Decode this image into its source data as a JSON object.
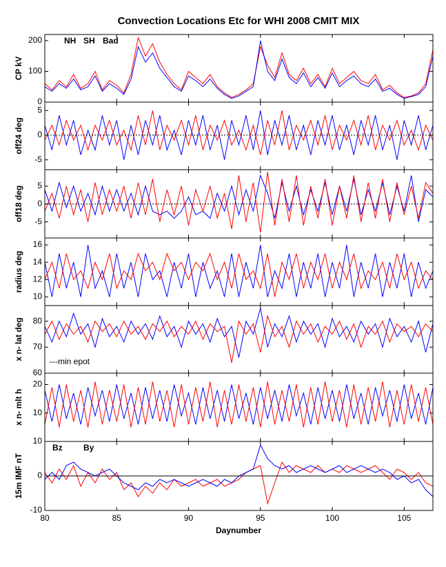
{
  "chart_data": {
    "type": "line",
    "title": "Convection Locations Etc for WHI 2008 CMIT MIX",
    "xlabel": "Daynumber",
    "xlim": [
      80,
      107
    ],
    "xticks": [
      80,
      85,
      90,
      95,
      100,
      105
    ],
    "x": [
      80,
      80.5,
      81,
      81.5,
      82,
      82.5,
      83,
      83.5,
      84,
      84.5,
      85,
      85.5,
      86,
      86.5,
      87,
      87.5,
      88,
      88.5,
      89,
      89.5,
      90,
      90.5,
      91,
      91.5,
      92,
      92.5,
      93,
      93.5,
      94,
      94.5,
      95,
      95.5,
      96,
      96.5,
      97,
      97.5,
      98,
      98.5,
      99,
      99.5,
      100,
      100.5,
      101,
      101.5,
      102,
      102.5,
      103,
      103.5,
      104,
      104.5,
      105,
      105.5,
      106,
      106.5,
      107
    ],
    "panels": [
      {
        "ylabel": "CP kV",
        "ylim": [
          0,
          220
        ],
        "yticks": [
          0,
          100,
          200
        ],
        "series": [
          {
            "name": "NH",
            "color": "#ff0000",
            "values": [
              60,
              40,
              70,
              50,
              90,
              45,
              60,
              100,
              40,
              70,
              55,
              30,
              90,
              210,
              150,
              190,
              130,
              90,
              60,
              40,
              100,
              80,
              60,
              90,
              50,
              30,
              15,
              25,
              40,
              60,
              180,
              120,
              80,
              160,
              90,
              70,
              110,
              60,
              90,
              50,
              110,
              60,
              80,
              100,
              70,
              60,
              90,
              40,
              55,
              30,
              15,
              20,
              30,
              60,
              170
            ]
          },
          {
            "name": "SH",
            "color": "#0000ff",
            "values": [
              50,
              35,
              60,
              45,
              75,
              40,
              50,
              85,
              35,
              60,
              45,
              25,
              75,
              180,
              130,
              160,
              110,
              80,
              50,
              35,
              85,
              70,
              50,
              75,
              45,
              25,
              12,
              20,
              35,
              50,
              200,
              100,
              70,
              140,
              80,
              60,
              95,
              50,
              80,
              45,
              95,
              50,
              70,
              85,
              60,
              50,
              75,
              35,
              45,
              25,
              12,
              18,
              25,
              50,
              150
            ]
          },
          {
            "name": "Bad",
            "color": "#000000",
            "values": [
              null,
              null,
              null,
              null,
              null,
              null,
              null,
              null,
              null,
              null,
              null,
              null,
              null,
              null,
              null,
              null,
              null,
              null,
              null,
              null,
              null,
              null,
              null,
              null,
              null,
              null,
              null,
              null,
              null,
              null,
              null,
              null,
              null,
              null,
              null,
              null,
              null,
              null,
              null,
              null,
              null,
              null,
              null,
              null,
              null,
              null,
              null,
              null,
              null,
              null,
              null,
              null,
              null,
              null,
              null
            ]
          }
        ]
      },
      {
        "ylabel": "off24 deg",
        "ylim": [
          -7,
          6.7
        ],
        "yticks": [
          -5,
          0,
          5
        ],
        "zero_line": true,
        "series": [
          {
            "name": "SH",
            "color": "#0000ff",
            "values": [
              2,
              -3,
              4,
              -2,
              3,
              -4,
              1,
              -3,
              4,
              -2,
              3,
              -5,
              2,
              -4,
              3,
              -2,
              4,
              -3,
              1,
              -4,
              3,
              -2,
              4,
              -3,
              2,
              -5,
              3,
              -2,
              4,
              -3,
              5,
              -4,
              3,
              -2,
              4,
              -3,
              2,
              -4,
              3,
              -2,
              4,
              -3,
              2,
              -4,
              3,
              -2,
              4,
              -3,
              2,
              -5,
              3,
              -2,
              4,
              -3,
              2
            ]
          },
          {
            "name": "NH",
            "color": "#ff0000",
            "values": [
              -1,
              2,
              -2,
              3,
              -1,
              2,
              -3,
              2,
              -1,
              3,
              -2,
              1,
              -3,
              4,
              -2,
              5,
              -3,
              2,
              -1,
              3,
              -2,
              4,
              -3,
              2,
              -1,
              3,
              -2,
              1,
              -3,
              2,
              -4,
              3,
              -2,
              5,
              -3,
              2,
              -1,
              3,
              -2,
              4,
              -3,
              2,
              -1,
              3,
              -2,
              4,
              -3,
              2,
              -1,
              3,
              -2,
              1,
              -3,
              2,
              -1
            ]
          }
        ]
      },
      {
        "ylabel": "off18 deg",
        "ylim": [
          -9.5,
          9.6
        ],
        "yticks": [
          -5,
          0,
          5
        ],
        "zero_line": true,
        "series": [
          {
            "name": "SH",
            "color": "#0000ff",
            "values": [
              4,
              -2,
              6,
              -1,
              5,
              -2,
              3,
              -3,
              5,
              -2,
              4,
              -2,
              3,
              -3,
              5,
              -2,
              -3,
              -2,
              -4,
              -2,
              2,
              -3,
              -2,
              -4,
              3,
              -2,
              5,
              -3,
              4,
              -2,
              8,
              3,
              -4,
              6,
              -2,
              5,
              -3,
              4,
              -2,
              6,
              -3,
              5,
              -2,
              7,
              -3,
              4,
              -2,
              6,
              -3,
              5,
              -2,
              8,
              -5,
              4,
              2
            ]
          },
          {
            "name": "NH",
            "color": "#ff0000",
            "values": [
              -2,
              3,
              -4,
              5,
              -3,
              4,
              -5,
              6,
              -3,
              4,
              -2,
              5,
              -4,
              6,
              -3,
              7,
              -5,
              4,
              -3,
              5,
              -6,
              4,
              -2,
              5,
              -4,
              3,
              -7,
              8,
              -5,
              6,
              -8,
              9,
              -6,
              7,
              -5,
              8,
              -6,
              5,
              -4,
              7,
              -6,
              5,
              -4,
              8,
              -5,
              6,
              -4,
              7,
              -5,
              6,
              -3,
              5,
              -4,
              6,
              3
            ]
          }
        ]
      },
      {
        "ylabel": "radius deg",
        "ylim": [
          9,
          16.8
        ],
        "yticks": [
          10,
          12,
          14,
          16
        ],
        "series": [
          {
            "name": "SH",
            "color": "#0000ff",
            "values": [
              14,
              10,
              15,
              11,
              14,
              10,
              16,
              11,
              13,
              10,
              15,
              11,
              14,
              10,
              15,
              12,
              13,
              10,
              14,
              11,
              15,
              10,
              14,
              11,
              13,
              10,
              15,
              10,
              14,
              11,
              16,
              10,
              13,
              11,
              15,
              10,
              14,
              11,
              15,
              10,
              14,
              11,
              16,
              10,
              14,
              11,
              15,
              10,
              14,
              11,
              15,
              10,
              14,
              11,
              13
            ]
          },
          {
            "name": "NH",
            "color": "#ff0000",
            "values": [
              12,
              14,
              11,
              15,
              12,
              13,
              11,
              14,
              12,
              15,
              11,
              13,
              12,
              15,
              13,
              14,
              12,
              15,
              13,
              14,
              12,
              14,
              13,
              15,
              12,
              14,
              11,
              15,
              12,
              13,
              11,
              15,
              10,
              14,
              12,
              15,
              11,
              14,
              12,
              15,
              11,
              14,
              12,
              15,
              11,
              13,
              12,
              14,
              11,
              15,
              12,
              14,
              11,
              13,
              12
            ]
          }
        ]
      },
      {
        "ylabel": "x n- lat deg",
        "ylim": [
          60,
          86
        ],
        "yticks": [
          60,
          70,
          80
        ],
        "annotation": "---min epot",
        "series": [
          {
            "name": "SH",
            "color": "#0000ff",
            "values": [
              78,
              72,
              80,
              74,
              83,
              75,
              79,
              70,
              81,
              74,
              78,
              72,
              80,
              75,
              79,
              73,
              82,
              74,
              78,
              70,
              80,
              75,
              79,
              72,
              81,
              74,
              78,
              66,
              80,
              75,
              85,
              70,
              79,
              74,
              82,
              72,
              80,
              75,
              79,
              70,
              81,
              74,
              78,
              72,
              80,
              75,
              79,
              70,
              81,
              74,
              78,
              72,
              80,
              68,
              79
            ]
          },
          {
            "name": "NH",
            "color": "#ff0000",
            "values": [
              75,
              80,
              73,
              79,
              75,
              78,
              72,
              80,
              76,
              79,
              74,
              80,
              75,
              78,
              73,
              79,
              76,
              80,
              74,
              78,
              75,
              80,
              73,
              79,
              76,
              78,
              64,
              80,
              75,
              79,
              68,
              82,
              74,
              78,
              70,
              80,
              75,
              79,
              72,
              78,
              75,
              80,
              73,
              79,
              70,
              78,
              75,
              80,
              72,
              79,
              76,
              78,
              74,
              79,
              76
            ]
          }
        ]
      },
      {
        "ylabel": "x n- mlt h",
        "ylim": [
          0,
          24
        ],
        "yticks": [
          10,
          20
        ],
        "series": [
          {
            "name": "SH",
            "color": "#0000ff",
            "values": [
              18,
              7,
              20,
              8,
              17,
              6,
              19,
              9,
              18,
              7,
              20,
              8,
              17,
              6,
              19,
              8,
              18,
              7,
              20,
              9,
              17,
              6,
              19,
              8,
              18,
              7,
              20,
              8,
              17,
              6,
              19,
              8,
              18,
              7,
              20,
              9,
              17,
              6,
              19,
              8,
              18,
              7,
              20,
              8,
              17,
              6,
              19,
              9,
              18,
              7,
              20,
              8,
              17,
              6,
              19
            ]
          },
          {
            "name": "NH",
            "color": "#ff0000",
            "values": [
              6,
              19,
              5,
              20,
              7,
              18,
              5,
              21,
              6,
              18,
              7,
              20,
              5,
              19,
              6,
              21,
              7,
              18,
              5,
              20,
              6,
              19,
              7,
              21,
              5,
              18,
              6,
              20,
              7,
              19,
              5,
              21,
              6,
              18,
              7,
              20,
              5,
              19,
              6,
              21,
              7,
              18,
              5,
              20,
              6,
              19,
              7,
              21,
              5,
              18,
              6,
              20,
              7,
              19,
              6
            ]
          }
        ]
      },
      {
        "ylabel": "15m IMF nT",
        "ylim": [
          -10,
          10
        ],
        "yticks": [
          -10,
          0,
          10
        ],
        "zero_line": true,
        "series": [
          {
            "name": "Bz",
            "color": "#ff0000",
            "values": [
              1,
              -2,
              2,
              -1,
              3,
              -3,
              1,
              -2,
              2,
              -1,
              1,
              -4,
              -2,
              -6,
              -3,
              -5,
              -2,
              -4,
              -1,
              -3,
              -2,
              -1,
              -3,
              -2,
              -1,
              -3,
              -2,
              -1,
              1,
              2,
              3,
              -8,
              -2,
              4,
              1,
              3,
              2,
              1,
              3,
              1,
              2,
              1,
              3,
              2,
              1,
              2,
              3,
              1,
              -1,
              2,
              1,
              -1,
              1,
              -2,
              -3
            ]
          },
          {
            "name": "By",
            "color": "#0000ff",
            "values": [
              -1,
              1,
              -1,
              3,
              4,
              2,
              1,
              0,
              1,
              2,
              0,
              -2,
              -3,
              -4,
              -2,
              -3,
              -1,
              -2,
              -1,
              -2,
              -3,
              -2,
              -1,
              -2,
              -3,
              -1,
              -2,
              0,
              1,
              2,
              9,
              5,
              3,
              2,
              3,
              1,
              2,
              3,
              2,
              1,
              2,
              3,
              1,
              2,
              3,
              2,
              1,
              2,
              1,
              -1,
              0,
              -2,
              -1,
              -4,
              -6
            ]
          }
        ]
      }
    ]
  }
}
